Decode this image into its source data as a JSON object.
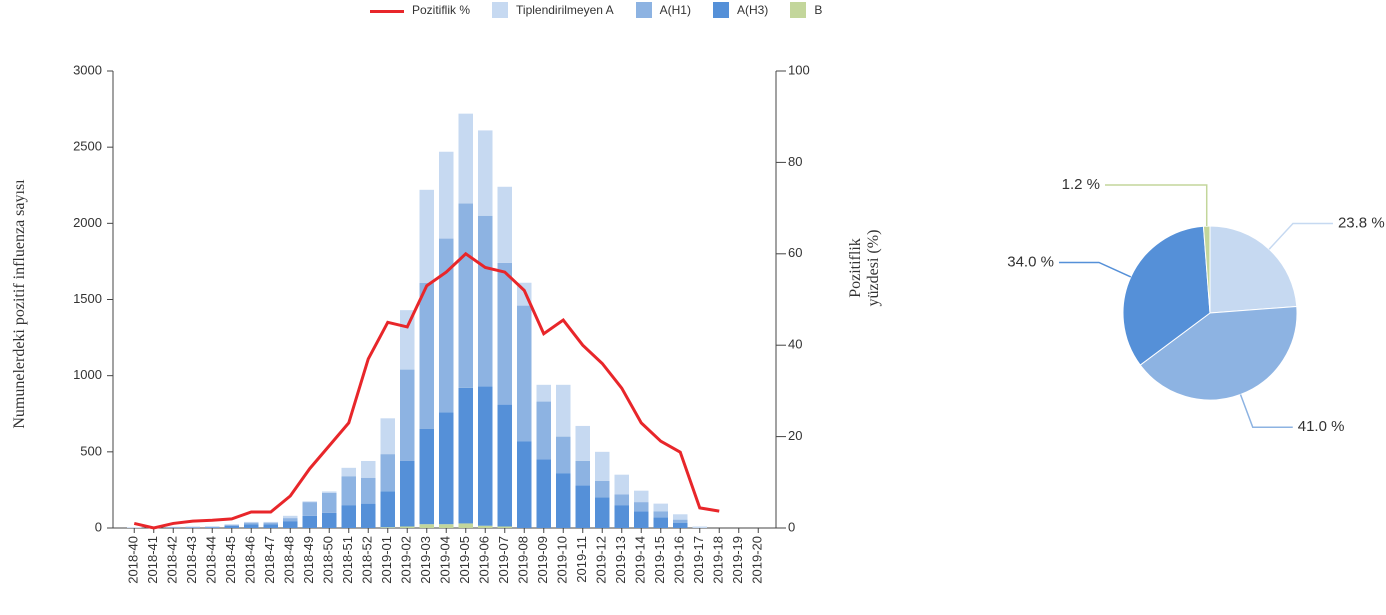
{
  "chart_data": [
    {
      "type": "bar",
      "stacked": true,
      "y_label": "Numunelerdeki pozitif influenza sayısı",
      "y2_label": "Pozitiflik yüzdesi (%)",
      "categories": [
        "2018-40",
        "2018-41",
        "2018-42",
        "2018-43",
        "2018-44",
        "2018-45",
        "2018-46",
        "2018-47",
        "2018-48",
        "2018-49",
        "2018-50",
        "2018-51",
        "2018-52",
        "2019-01",
        "2019-02",
        "2019-03",
        "2019-04",
        "2019-05",
        "2019-06",
        "2019-07",
        "2019-08",
        "2019-09",
        "2019-10",
        "2019-11",
        "2019-12",
        "2019-13",
        "2019-14",
        "2019-15",
        "2019-16",
        "2019-17",
        "2019-18",
        "2019-19",
        "2019-20"
      ],
      "series": [
        {
          "name": "B",
          "color": "#c3d69b",
          "values": [
            0,
            0,
            0,
            0,
            0,
            0,
            0,
            0,
            0,
            0,
            0,
            0,
            0,
            5,
            10,
            25,
            25,
            30,
            15,
            10,
            0,
            0,
            0,
            0,
            0,
            0,
            0,
            0,
            0,
            0,
            0,
            0,
            0
          ]
        },
        {
          "name": "A(H3)",
          "color": "#5590d8",
          "values": [
            0,
            0,
            2,
            3,
            4,
            15,
            25,
            25,
            45,
            80,
            100,
            150,
            160,
            235,
            430,
            625,
            735,
            890,
            915,
            800,
            570,
            450,
            360,
            280,
            200,
            150,
            110,
            70,
            35,
            0,
            0,
            0,
            0
          ]
        },
        {
          "name": "A(H1)",
          "color": "#8db3e2",
          "values": [
            0,
            0,
            1,
            2,
            3,
            5,
            10,
            10,
            20,
            90,
            130,
            190,
            170,
            245,
            600,
            960,
            1140,
            1210,
            1120,
            930,
            890,
            380,
            240,
            160,
            110,
            70,
            60,
            40,
            20,
            0,
            0,
            0,
            0
          ]
        },
        {
          "name": "Tiplendirilmeyen A",
          "color": "#c6d9f1",
          "values": [
            5,
            5,
            5,
            5,
            5,
            5,
            5,
            5,
            15,
            5,
            10,
            55,
            110,
            235,
            390,
            610,
            570,
            590,
            560,
            500,
            150,
            110,
            340,
            230,
            190,
            130,
            75,
            50,
            35,
            10,
            0,
            0,
            0
          ]
        },
        {
          "name": "Pozitiflik %",
          "type": "line",
          "axis": "y2",
          "color": "#e8262a",
          "values": [
            1,
            0,
            1,
            1.5,
            1.7,
            2,
            3.5,
            3.5,
            7,
            13,
            18,
            23,
            37,
            45,
            44,
            53,
            56,
            60,
            57,
            56,
            52,
            42.5,
            45.5,
            40,
            36,
            30.6,
            23,
            19,
            16.6,
            4.4,
            3.7,
            null,
            null
          ]
        }
      ],
      "ylim": [
        0,
        3000
      ],
      "yticks": [
        0,
        500,
        1000,
        1500,
        2000,
        2500,
        3000
      ],
      "y2lim": [
        0,
        100
      ],
      "y2ticks": [
        0,
        20,
        40,
        60,
        80,
        100
      ]
    },
    {
      "type": "pie",
      "values": [
        23.8,
        41.0,
        34.0,
        1.2
      ],
      "value_labels": [
        "23.8 %",
        "41.0 %",
        "34.0 %",
        "1.2 %"
      ],
      "colors": [
        "#c6d9f1",
        "#8db3e2",
        "#5590d8",
        "#c3d69b"
      ]
    }
  ]
}
